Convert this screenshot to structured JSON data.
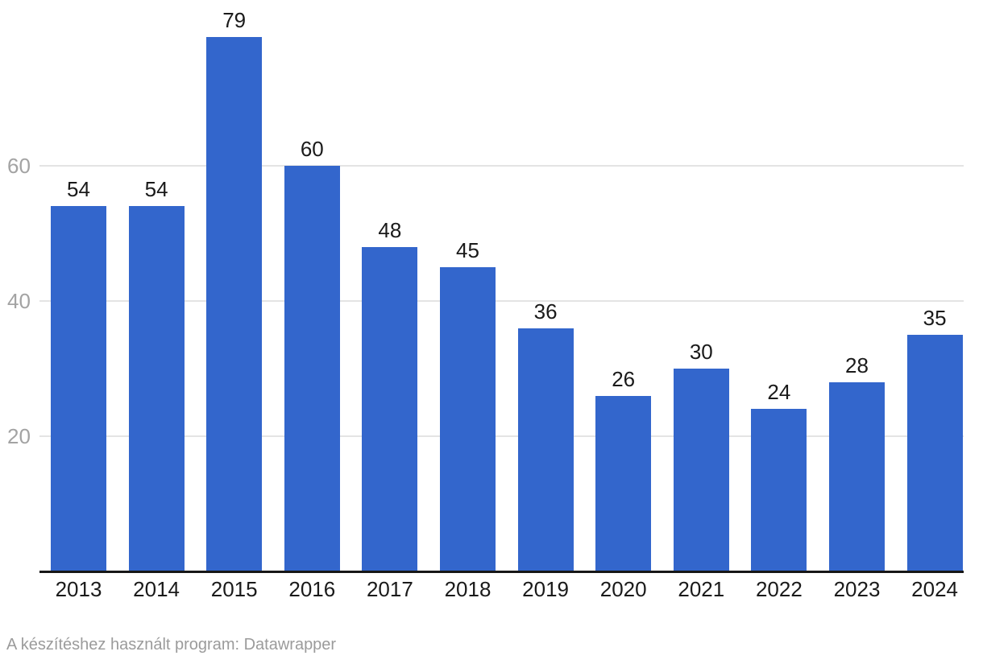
{
  "chart_data": {
    "type": "bar",
    "title": "",
    "xlabel": "",
    "ylabel": "",
    "categories": [
      "2013",
      "2014",
      "2015",
      "2016",
      "2017",
      "2018",
      "2019",
      "2020",
      "2021",
      "2022",
      "2023",
      "2024"
    ],
    "values": [
      54,
      54,
      79,
      60,
      48,
      45,
      36,
      26,
      30,
      24,
      28,
      35
    ],
    "y_ticks": [
      20,
      40,
      60
    ],
    "ylim": [
      0,
      84.5
    ],
    "grid": true,
    "legend": false,
    "value_labels_shown": true,
    "colors": {
      "bar": "#3366cc",
      "value_label": "#1a1a1a",
      "x_label": "#1a1a1a",
      "y_tick_label": "#a3a3a3",
      "gridline": "#e4e4e4",
      "axis_line": "#171717",
      "footer_text": "#9b9b9b",
      "background": "#ffffff"
    }
  },
  "footer": {
    "text": "A készítéshez használt program: Datawrapper"
  }
}
